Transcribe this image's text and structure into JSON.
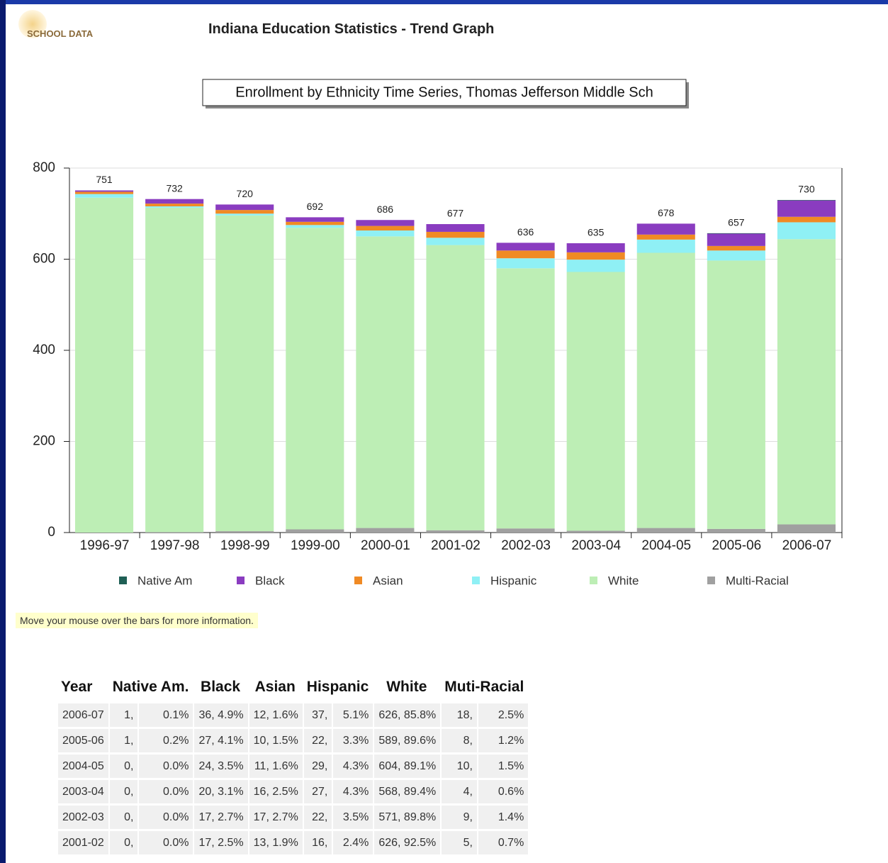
{
  "header": {
    "logo": "SCHOOL DATA",
    "title": "Indiana Education Statistics - Trend Graph"
  },
  "chart_data": {
    "type": "stacked_bar",
    "title": "Enrollment by Ethnicity Time Series, Thomas Jefferson Middle Sch",
    "categories": [
      "1996-97",
      "1997-98",
      "1998-99",
      "1999-00",
      "2000-01",
      "2001-02",
      "2002-03",
      "2003-04",
      "2004-05",
      "2005-06",
      "2006-07"
    ],
    "series": [
      {
        "name": "Native Am",
        "color": "#1f5f55",
        "values": [
          0,
          0,
          0,
          0,
          0,
          0,
          0,
          0,
          0,
          1,
          1
        ]
      },
      {
        "name": "Black",
        "color": "#8a3cc0",
        "values": [
          3,
          10,
          12,
          10,
          13,
          17,
          17,
          20,
          24,
          27,
          36
        ]
      },
      {
        "name": "Asian",
        "color": "#f08a24",
        "values": [
          5,
          6,
          8,
          7,
          10,
          13,
          17,
          16,
          11,
          10,
          12
        ]
      },
      {
        "name": "Hispanic",
        "color": "#8ff0f5",
        "values": [
          8,
          3,
          4,
          6,
          13,
          16,
          22,
          27,
          29,
          22,
          37
        ]
      },
      {
        "name": "White",
        "color": "#bdeeb5",
        "values": [
          735,
          712,
          693,
          662,
          640,
          626,
          571,
          568,
          604,
          589,
          626
        ]
      },
      {
        "name": "Multi-Racial",
        "color": "#a0a0a0",
        "values": [
          0,
          1,
          3,
          7,
          10,
          5,
          9,
          4,
          10,
          8,
          18
        ]
      }
    ],
    "totals": [
      751,
      732,
      720,
      692,
      686,
      677,
      636,
      635,
      678,
      657,
      730
    ],
    "ylim": [
      0,
      800
    ],
    "yticks": [
      0,
      200,
      400,
      600,
      800
    ],
    "grid": true
  },
  "hint": "Move your mouse over the bars for more information.",
  "table": {
    "columns": [
      "Year",
      "Native Am.",
      "Black",
      "Asian",
      "Hispanic",
      "White",
      "Muti-Racial"
    ],
    "rows": [
      [
        "2006-07",
        "1,",
        "0.1%",
        "36, 4.9%",
        "12, 1.6%",
        "37,",
        "5.1%",
        "626, 85.8%",
        "18,",
        "2.5%"
      ],
      [
        "2005-06",
        "1,",
        "0.2%",
        "27, 4.1%",
        "10, 1.5%",
        "22,",
        "3.3%",
        "589, 89.6%",
        "8,",
        "1.2%"
      ],
      [
        "2004-05",
        "0,",
        "0.0%",
        "24, 3.5%",
        "11, 1.6%",
        "29,",
        "4.3%",
        "604, 89.1%",
        "10,",
        "1.5%"
      ],
      [
        "2003-04",
        "0,",
        "0.0%",
        "20, 3.1%",
        "16, 2.5%",
        "27,",
        "4.3%",
        "568, 89.4%",
        "4,",
        "0.6%"
      ],
      [
        "2002-03",
        "0,",
        "0.0%",
        "17, 2.7%",
        "17, 2.7%",
        "22,",
        "3.5%",
        "571, 89.8%",
        "9,",
        "1.4%"
      ],
      [
        "2001-02",
        "0,",
        "0.0%",
        "17, 2.5%",
        "13, 1.9%",
        "16,",
        "2.4%",
        "626, 92.5%",
        "5,",
        "0.7%"
      ]
    ]
  }
}
